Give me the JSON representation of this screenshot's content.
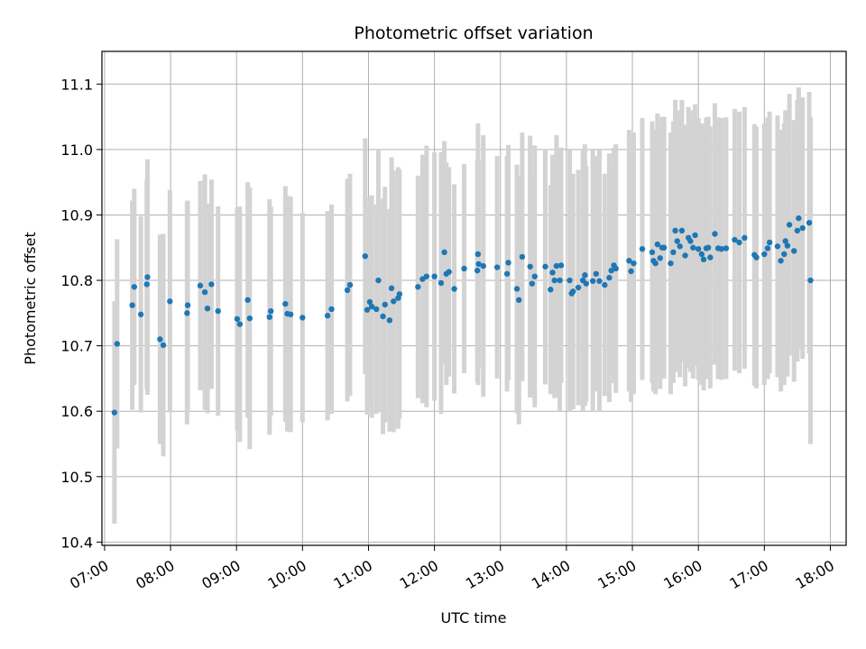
{
  "chart_data": {
    "type": "scatter",
    "title": "Photometric offset variation",
    "xlabel": "UTC time",
    "ylabel": "Photometric offset",
    "x_unit": "hours",
    "xlim": [
      6.96,
      18.24
    ],
    "ylim": [
      10.395,
      11.15
    ],
    "grid": true,
    "x_ticks": [
      {
        "value": 7,
        "label": "07:00"
      },
      {
        "value": 8,
        "label": "08:00"
      },
      {
        "value": 9,
        "label": "09:00"
      },
      {
        "value": 10,
        "label": "10:00"
      },
      {
        "value": 11,
        "label": "11:00"
      },
      {
        "value": 12,
        "label": "12:00"
      },
      {
        "value": 13,
        "label": "13:00"
      },
      {
        "value": 14,
        "label": "14:00"
      },
      {
        "value": 15,
        "label": "15:00"
      },
      {
        "value": 16,
        "label": "16:00"
      },
      {
        "value": 17,
        "label": "17:00"
      },
      {
        "value": 18,
        "label": "18:00"
      }
    ],
    "y_ticks": [
      {
        "value": 10.4,
        "label": "10.4"
      },
      {
        "value": 10.5,
        "label": "10.5"
      },
      {
        "value": 10.6,
        "label": "10.6"
      },
      {
        "value": 10.7,
        "label": "10.7"
      },
      {
        "value": 10.8,
        "label": "10.8"
      },
      {
        "value": 10.9,
        "label": "10.9"
      },
      {
        "value": 11.0,
        "label": "11.0"
      },
      {
        "value": 11.1,
        "label": "11.1"
      }
    ],
    "colors": {
      "points": "#1f77b4",
      "errorbars": "#d3d3d3",
      "grid": "#b0b0b0"
    },
    "points": [
      [
        7.15,
        10.598,
        0.17
      ],
      [
        7.19,
        10.703,
        0.16
      ],
      [
        7.42,
        10.762,
        0.16
      ],
      [
        7.45,
        10.79,
        0.15
      ],
      [
        7.55,
        10.748,
        0.15
      ],
      [
        7.64,
        10.794,
        0.16
      ],
      [
        7.65,
        10.805,
        0.18
      ],
      [
        7.84,
        10.71,
        0.16
      ],
      [
        7.89,
        10.701,
        0.17
      ],
      [
        7.99,
        10.768,
        0.17
      ],
      [
        8.25,
        10.75,
        0.17
      ],
      [
        8.26,
        10.762,
        0.16
      ],
      [
        8.45,
        10.792,
        0.16
      ],
      [
        8.52,
        10.782,
        0.18
      ],
      [
        8.56,
        10.757,
        0.16
      ],
      [
        8.62,
        10.794,
        0.16
      ],
      [
        8.72,
        10.753,
        0.16
      ],
      [
        9.01,
        10.741,
        0.17
      ],
      [
        9.05,
        10.733,
        0.18
      ],
      [
        9.17,
        10.77,
        0.18
      ],
      [
        9.2,
        10.742,
        0.2
      ],
      [
        9.5,
        10.744,
        0.18
      ],
      [
        9.52,
        10.753,
        0.16
      ],
      [
        9.74,
        10.764,
        0.18
      ],
      [
        9.77,
        10.749,
        0.18
      ],
      [
        9.82,
        10.748,
        0.18
      ],
      [
        10.0,
        10.743,
        0.16
      ],
      [
        10.38,
        10.746,
        0.16
      ],
      [
        10.44,
        10.756,
        0.16
      ],
      [
        10.68,
        10.785,
        0.17
      ],
      [
        10.72,
        10.793,
        0.17
      ],
      [
        10.95,
        10.837,
        0.18
      ],
      [
        10.98,
        10.755,
        0.16
      ],
      [
        11.02,
        10.767,
        0.16
      ],
      [
        11.05,
        10.76,
        0.17
      ],
      [
        11.12,
        10.756,
        0.16
      ],
      [
        11.15,
        10.8,
        0.2
      ],
      [
        11.22,
        10.745,
        0.18
      ],
      [
        11.25,
        10.763,
        0.18
      ],
      [
        11.32,
        10.739,
        0.17
      ],
      [
        11.35,
        10.788,
        0.2
      ],
      [
        11.38,
        10.768,
        0.2
      ],
      [
        11.45,
        10.773,
        0.2
      ],
      [
        11.47,
        10.779,
        0.19
      ],
      [
        11.75,
        10.79,
        0.17
      ],
      [
        11.82,
        10.802,
        0.19
      ],
      [
        11.88,
        10.806,
        0.2
      ],
      [
        12.0,
        10.806,
        0.19
      ],
      [
        12.1,
        10.796,
        0.2
      ],
      [
        12.15,
        10.843,
        0.17
      ],
      [
        12.18,
        10.81,
        0.17
      ],
      [
        12.22,
        10.813,
        0.16
      ],
      [
        12.3,
        10.787,
        0.16
      ],
      [
        12.45,
        10.818,
        0.16
      ],
      [
        12.65,
        10.815,
        0.17
      ],
      [
        12.66,
        10.84,
        0.2
      ],
      [
        12.67,
        10.825,
        0.16
      ],
      [
        12.74,
        10.822,
        0.2
      ],
      [
        12.95,
        10.82,
        0.17
      ],
      [
        13.1,
        10.81,
        0.18
      ],
      [
        13.12,
        10.827,
        0.18
      ],
      [
        13.25,
        10.787,
        0.19
      ],
      [
        13.28,
        10.77,
        0.19
      ],
      [
        13.33,
        10.836,
        0.19
      ],
      [
        13.45,
        10.821,
        0.2
      ],
      [
        13.48,
        10.795,
        0.17
      ],
      [
        13.52,
        10.806,
        0.2
      ],
      [
        13.68,
        10.821,
        0.18
      ],
      [
        13.76,
        10.786,
        0.16
      ],
      [
        13.79,
        10.812,
        0.18
      ],
      [
        13.82,
        10.8,
        0.18
      ],
      [
        13.85,
        10.822,
        0.2
      ],
      [
        13.9,
        10.8,
        0.2
      ],
      [
        13.92,
        10.823,
        0.18
      ],
      [
        14.05,
        10.8,
        0.2
      ],
      [
        14.08,
        10.78,
        0.17
      ],
      [
        14.1,
        10.783,
        0.18
      ],
      [
        14.18,
        10.789,
        0.18
      ],
      [
        14.25,
        10.8,
        0.2
      ],
      [
        14.28,
        10.808,
        0.2
      ],
      [
        14.3,
        10.795,
        0.18
      ],
      [
        14.4,
        10.799,
        0.2
      ],
      [
        14.45,
        10.81,
        0.18
      ],
      [
        14.5,
        10.799,
        0.2
      ],
      [
        14.58,
        10.793,
        0.17
      ],
      [
        14.65,
        10.804,
        0.19
      ],
      [
        14.68,
        10.815,
        0.16
      ],
      [
        14.72,
        10.823,
        0.18
      ],
      [
        14.75,
        10.818,
        0.19
      ],
      [
        14.95,
        10.83,
        0.2
      ],
      [
        14.98,
        10.814,
        0.2
      ],
      [
        15.02,
        10.826,
        0.2
      ],
      [
        15.15,
        10.848,
        0.2
      ],
      [
        15.3,
        10.843,
        0.2
      ],
      [
        15.32,
        10.83,
        0.2
      ],
      [
        15.35,
        10.826,
        0.2
      ],
      [
        15.38,
        10.855,
        0.2
      ],
      [
        15.42,
        10.834,
        0.2
      ],
      [
        15.45,
        10.85,
        0.2
      ],
      [
        15.48,
        10.85,
        0.2
      ],
      [
        15.58,
        10.826,
        0.2
      ],
      [
        15.62,
        10.843,
        0.2
      ],
      [
        15.65,
        10.876,
        0.2
      ],
      [
        15.68,
        10.86,
        0.2
      ],
      [
        15.72,
        10.852,
        0.2
      ],
      [
        15.75,
        10.876,
        0.2
      ],
      [
        15.8,
        10.838,
        0.2
      ],
      [
        15.85,
        10.865,
        0.2
      ],
      [
        15.88,
        10.86,
        0.2
      ],
      [
        15.92,
        10.85,
        0.2
      ],
      [
        15.95,
        10.869,
        0.2
      ],
      [
        16.0,
        10.848,
        0.2
      ],
      [
        16.05,
        10.84,
        0.2
      ],
      [
        16.08,
        10.832,
        0.2
      ],
      [
        16.12,
        10.849,
        0.2
      ],
      [
        16.15,
        10.85,
        0.2
      ],
      [
        16.18,
        10.835,
        0.2
      ],
      [
        16.25,
        10.871,
        0.2
      ],
      [
        16.3,
        10.849,
        0.2
      ],
      [
        16.35,
        10.848,
        0.2
      ],
      [
        16.42,
        10.849,
        0.2
      ],
      [
        16.55,
        10.862,
        0.2
      ],
      [
        16.62,
        10.858,
        0.2
      ],
      [
        16.7,
        10.865,
        0.2
      ],
      [
        16.85,
        10.839,
        0.2
      ],
      [
        16.88,
        10.835,
        0.2
      ],
      [
        17.0,
        10.84,
        0.2
      ],
      [
        17.05,
        10.849,
        0.2
      ],
      [
        17.08,
        10.858,
        0.2
      ],
      [
        17.2,
        10.852,
        0.2
      ],
      [
        17.25,
        10.83,
        0.2
      ],
      [
        17.3,
        10.84,
        0.2
      ],
      [
        17.32,
        10.86,
        0.2
      ],
      [
        17.35,
        10.853,
        0.2
      ],
      [
        17.38,
        10.885,
        0.2
      ],
      [
        17.45,
        10.845,
        0.2
      ],
      [
        17.5,
        10.876,
        0.2
      ],
      [
        17.52,
        10.895,
        0.2
      ],
      [
        17.58,
        10.88,
        0.2
      ],
      [
        17.68,
        10.888,
        0.2
      ],
      [
        17.7,
        10.8,
        0.25
      ]
    ]
  }
}
